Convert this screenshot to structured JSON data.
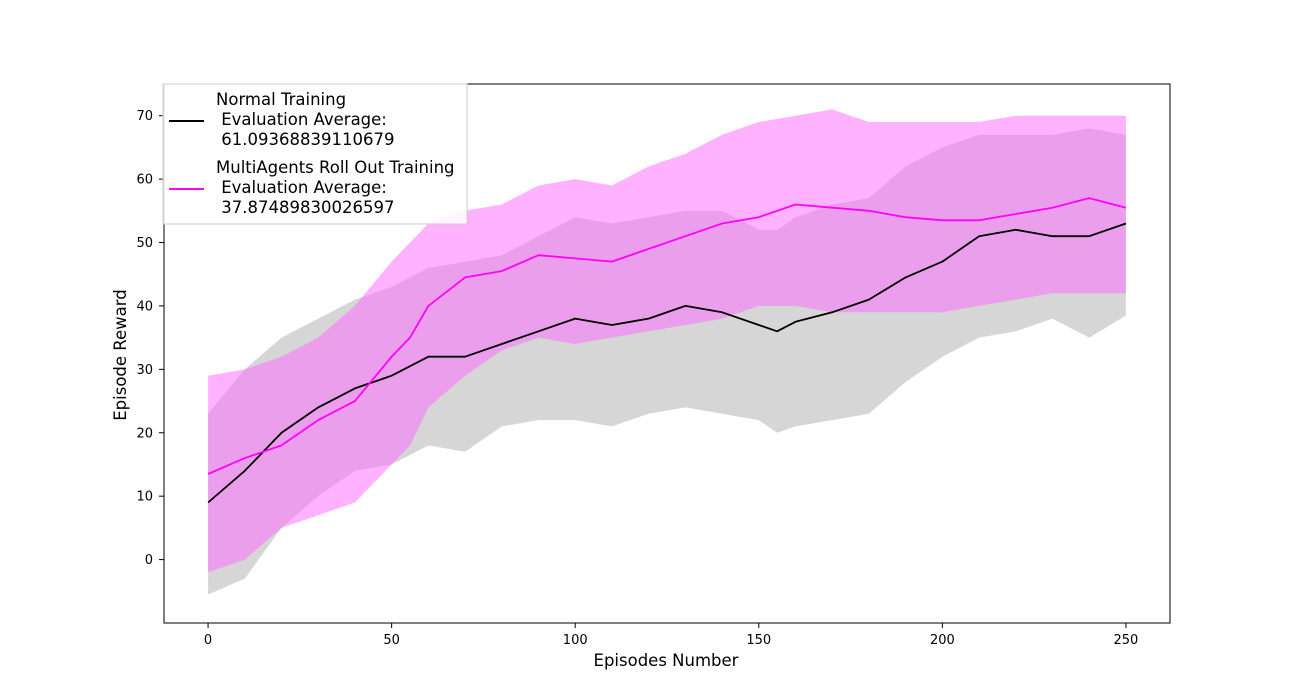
{
  "chart_data": {
    "type": "line",
    "title": "",
    "xlabel": "Episodes Number",
    "ylabel": "Episode Reward",
    "xlim": [
      -12,
      262
    ],
    "ylim": [
      -10,
      75
    ],
    "x_ticks": [
      0,
      50,
      100,
      150,
      200,
      250
    ],
    "y_ticks": [
      0,
      10,
      20,
      30,
      40,
      50,
      60,
      70
    ],
    "grid": false,
    "legend_position": "top-left",
    "series": [
      {
        "name": "Normal Training\n Evaluation Average:\n 61.09368839110679",
        "legend_lines": [
          "Normal Training",
          " Evaluation Average:",
          " 61.09368839110679"
        ],
        "color": "#000000",
        "band_color": "#c8c8c8",
        "x": [
          0,
          10,
          20,
          30,
          40,
          50,
          60,
          70,
          80,
          90,
          100,
          110,
          120,
          130,
          140,
          150,
          155,
          160,
          170,
          180,
          190,
          200,
          210,
          220,
          230,
          240,
          250
        ],
        "mean": [
          9,
          14,
          20,
          24,
          27,
          29,
          32,
          32,
          34,
          36,
          38,
          37,
          38,
          40,
          39,
          37,
          36,
          37.5,
          39,
          41,
          44.5,
          47,
          51,
          52,
          51,
          51,
          53
        ],
        "lower": [
          -5.5,
          -3,
          5,
          10,
          14,
          15,
          18,
          17,
          21,
          22,
          22,
          21,
          23,
          24,
          23,
          22,
          20,
          21,
          22,
          23,
          28,
          32,
          35,
          36,
          38,
          35,
          38.5
        ],
        "upper": [
          23,
          30,
          35,
          38,
          41,
          43,
          46,
          47,
          48,
          51,
          54,
          53,
          54,
          55,
          55,
          52,
          52,
          54,
          56,
          57,
          62,
          65,
          67,
          67,
          67,
          68,
          67
        ]
      },
      {
        "name": "MultiAgents Roll Out Training\n Evaluation Average:\n 37.87489830026597",
        "legend_lines": [
          "MultiAgents Roll Out Training",
          " Evaluation Average:",
          " 37.87489830026597"
        ],
        "color": "#ff00ff",
        "band_color": "#ff66ff",
        "x": [
          0,
          10,
          20,
          30,
          40,
          50,
          55,
          60,
          70,
          80,
          90,
          100,
          110,
          120,
          130,
          140,
          150,
          160,
          170,
          180,
          190,
          200,
          210,
          220,
          230,
          240,
          250
        ],
        "mean": [
          13.5,
          16,
          18,
          22,
          25,
          32,
          35,
          40,
          44.5,
          45.5,
          48,
          47.5,
          47,
          49,
          51,
          53,
          54,
          56,
          55.5,
          55,
          54,
          53.5,
          53.5,
          54.5,
          55.5,
          57,
          55.5
        ],
        "lower": [
          -2,
          0,
          5,
          7,
          9,
          15,
          18,
          24,
          29,
          33,
          35,
          34,
          35,
          36,
          37,
          38,
          40,
          40,
          39,
          39,
          39,
          39,
          40,
          41,
          42,
          42,
          42
        ],
        "upper": [
          29,
          30,
          32,
          35,
          40,
          47,
          50,
          53,
          55,
          56,
          59,
          60,
          59,
          62,
          64,
          67,
          69,
          70,
          71,
          69,
          69,
          69,
          69,
          70,
          70,
          70,
          70
        ]
      }
    ]
  }
}
